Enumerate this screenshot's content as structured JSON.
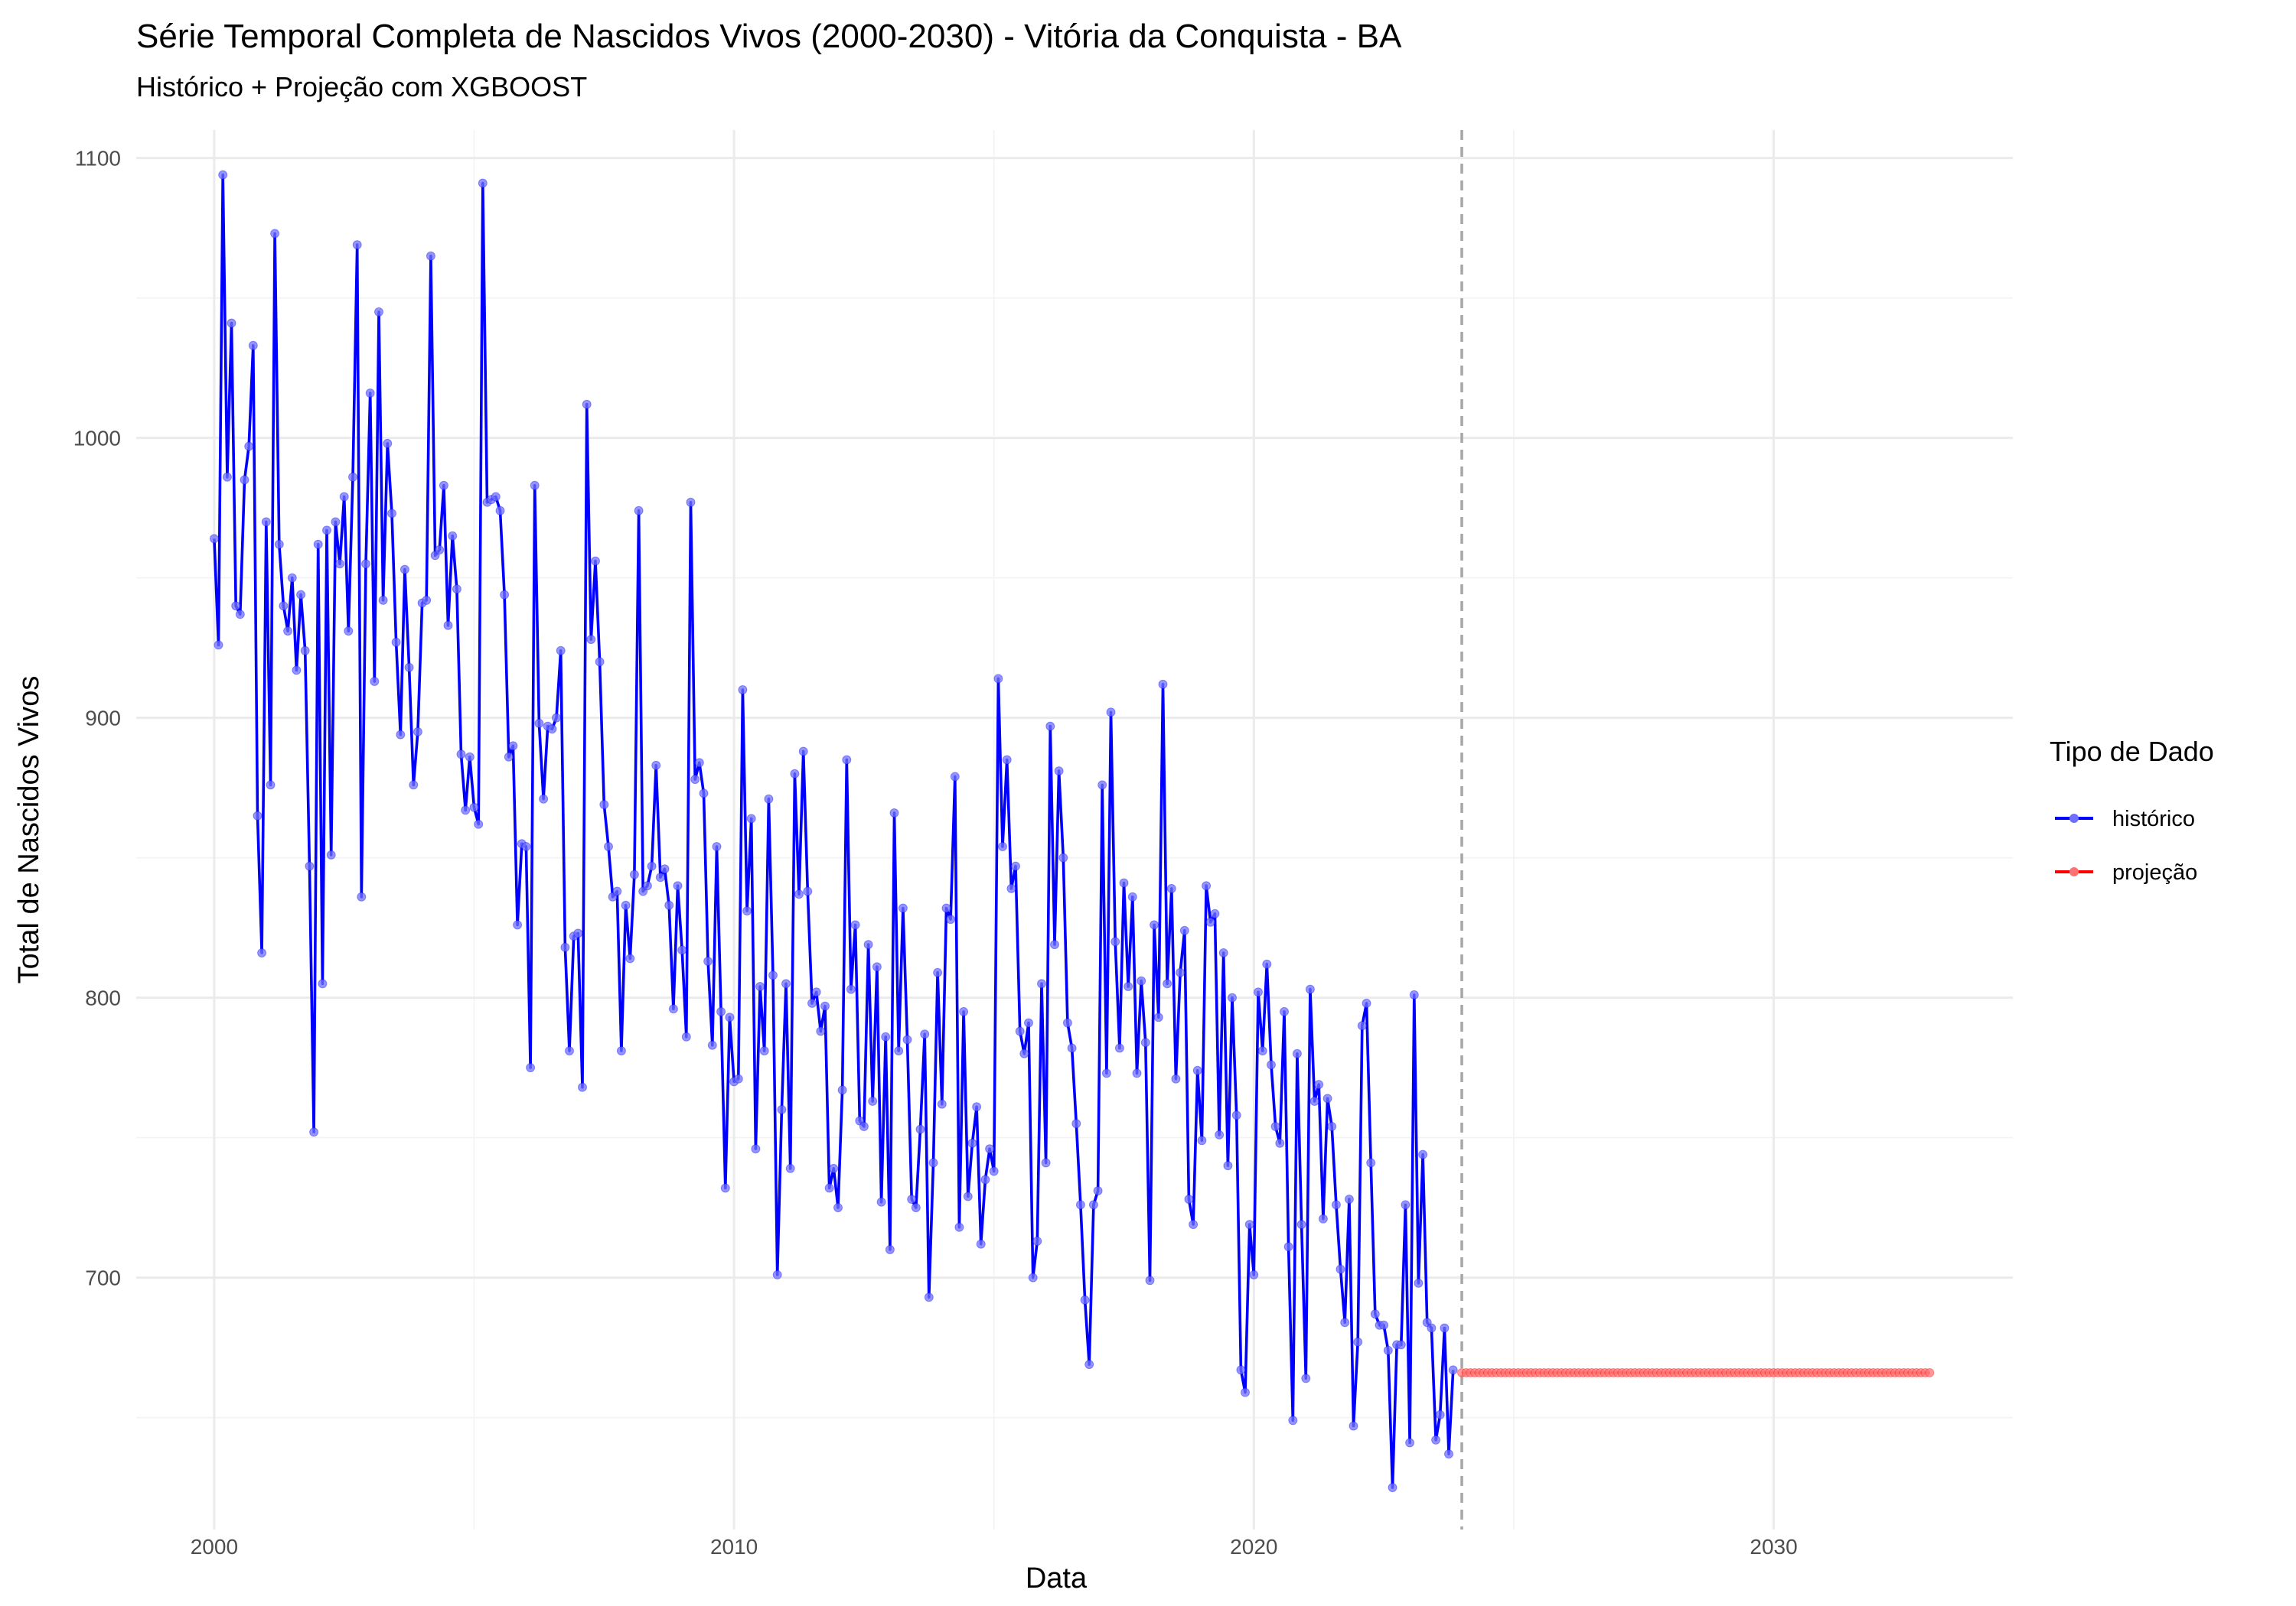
{
  "chart_data": {
    "type": "line",
    "title": "Série Temporal Completa de Nascidos Vivos (2000-2030) -  Vitória da Conquista - BA",
    "subtitle": "Histórico + Projeção com XGBOOST",
    "xlabel": "Data",
    "ylabel": "Total de Nascidos Vivos",
    "xlim": [
      1998.5,
      2034.6
    ],
    "ylim": [
      610,
      1110
    ],
    "x_ticks": [
      2000,
      2010,
      2020,
      2030
    ],
    "y_ticks": [
      700,
      800,
      900,
      1000,
      1100
    ],
    "grid": true,
    "legend_title": "Tipo de Dado",
    "legend_position": "right",
    "forecast_start_marker": 2024.0,
    "series": [
      {
        "name": "histórico",
        "color": "#0000ff",
        "x_start": 2000.0,
        "x_step_months": 1,
        "values": [
          964,
          926,
          1094,
          986,
          1041,
          940,
          937,
          985,
          997,
          1033,
          865,
          816,
          970,
          876,
          1073,
          962,
          940,
          931,
          950,
          917,
          944,
          924,
          847,
          752,
          962,
          805,
          967,
          851,
          970,
          955,
          979,
          931,
          986,
          1069,
          836,
          955,
          1016,
          913,
          1045,
          942,
          998,
          973,
          927,
          894,
          953,
          918,
          876,
          895,
          941,
          942,
          1065,
          958,
          960,
          983,
          933,
          965,
          946,
          887,
          867,
          886,
          868,
          862,
          1091,
          977,
          978,
          979,
          974,
          944,
          886,
          890,
          826,
          855,
          854,
          775,
          983,
          898,
          871,
          897,
          896,
          900,
          924,
          818,
          781,
          822,
          823,
          768,
          1012,
          928,
          956,
          920,
          869,
          854,
          836,
          838,
          781,
          833,
          814,
          844,
          974,
          838,
          840,
          847,
          883,
          843,
          846,
          833,
          796,
          840,
          817,
          786,
          977,
          878,
          884,
          873,
          813,
          783,
          854,
          795,
          732,
          793,
          770,
          771,
          910,
          831,
          864,
          746,
          804,
          781,
          871,
          808,
          701,
          760,
          805,
          739,
          880,
          837,
          888,
          838,
          798,
          802,
          788,
          797,
          732,
          739,
          725,
          767,
          885,
          803,
          826,
          756,
          754,
          819,
          763,
          811,
          727,
          786,
          710,
          866,
          781,
          832,
          785,
          728,
          725,
          753,
          787,
          693,
          741,
          809,
          762,
          832,
          828,
          879,
          718,
          795,
          729,
          748,
          761,
          712,
          735,
          746,
          738,
          914,
          854,
          885,
          839,
          847,
          788,
          780,
          791,
          700,
          713,
          805,
          741,
          897,
          819,
          881,
          850,
          791,
          782,
          755,
          726,
          692,
          669,
          726,
          731,
          876,
          773,
          902,
          820,
          782,
          841,
          804,
          836,
          773,
          806,
          784,
          699,
          826,
          793,
          912,
          805,
          839,
          771,
          809,
          824,
          728,
          719,
          774,
          749,
          840,
          827,
          830,
          751,
          816,
          740,
          800,
          758,
          667,
          659,
          719,
          701,
          802,
          781,
          812,
          776,
          754,
          748,
          795,
          711,
          649,
          780,
          719,
          664,
          803,
          763,
          769,
          721,
          764,
          754,
          726,
          703,
          684,
          728,
          647,
          677,
          790,
          798,
          741,
          687,
          683,
          683,
          674,
          625,
          676,
          676,
          726,
          641,
          801,
          698,
          744,
          684,
          682,
          642,
          651,
          682,
          637,
          667
        ]
      },
      {
        "name": "projeção",
        "color": "#ff0000",
        "x_start": 2024.0,
        "x_step_months": 1,
        "values": [
          666,
          666,
          666,
          666,
          666,
          666,
          666,
          666,
          666,
          666,
          666,
          666,
          666,
          666,
          666,
          666,
          666,
          666,
          666,
          666,
          666,
          666,
          666,
          666,
          666,
          666,
          666,
          666,
          666,
          666,
          666,
          666,
          666,
          666,
          666,
          666,
          666,
          666,
          666,
          666,
          666,
          666,
          666,
          666,
          666,
          666,
          666,
          666,
          666,
          666,
          666,
          666,
          666,
          666,
          666,
          666,
          666,
          666,
          666,
          666,
          666,
          666,
          666,
          666,
          666,
          666,
          666,
          666,
          666,
          666,
          666,
          666,
          666,
          666,
          666,
          666,
          666,
          666,
          666,
          666,
          666,
          666,
          666,
          666,
          666,
          666,
          666,
          666,
          666,
          666,
          666,
          666,
          666,
          666,
          666,
          666,
          666,
          666,
          666,
          666,
          666,
          666,
          666,
          666,
          666,
          666,
          666,
          666,
          666
        ]
      }
    ]
  }
}
